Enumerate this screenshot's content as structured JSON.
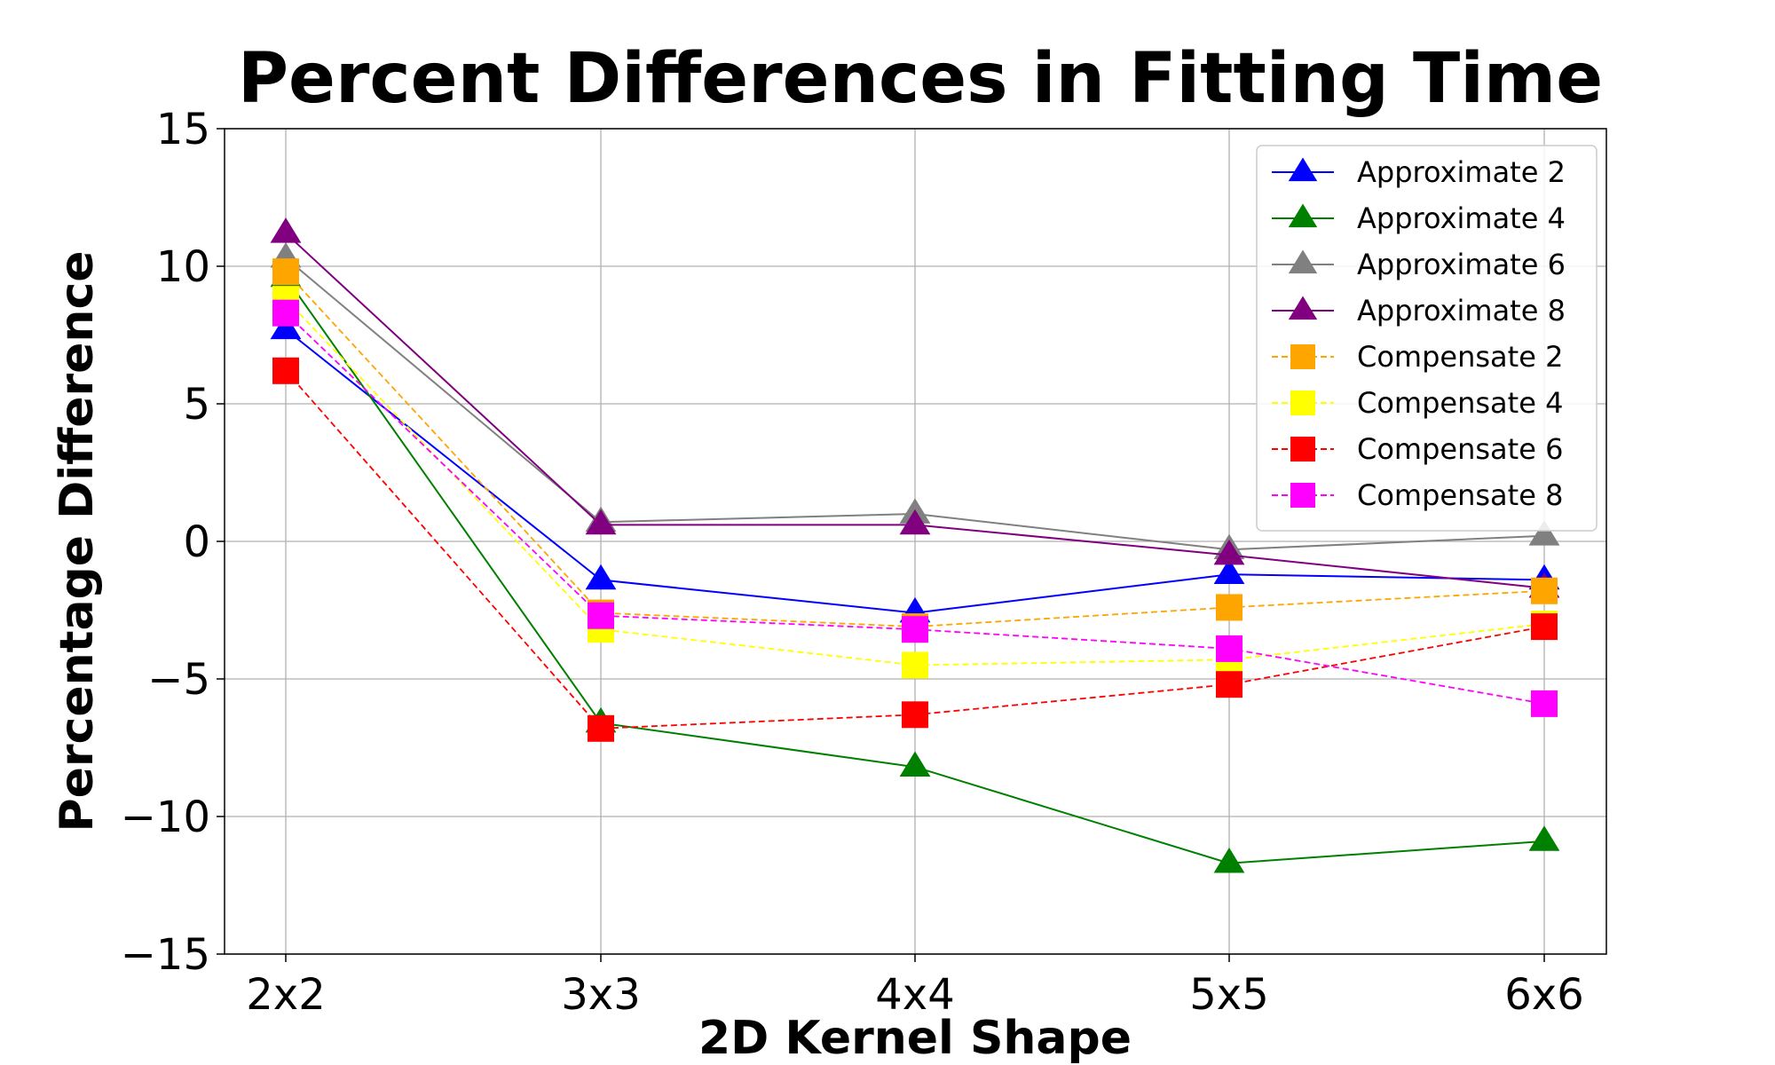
{
  "chart_data": {
    "type": "line",
    "title": "Percent Differences in Fitting Time",
    "xlabel": "2D Kernel Shape",
    "ylabel": "Percentage Difference",
    "categories": [
      "2x2",
      "3x3",
      "4x4",
      "5x5",
      "6x6"
    ],
    "ylim": [
      -15,
      15
    ],
    "yticks": [
      15,
      10,
      5,
      0,
      -5,
      -10,
      -15
    ],
    "ytick_labels": [
      "15",
      "10",
      "5",
      "0",
      "−5",
      "−10",
      "−15"
    ],
    "grid": true,
    "legend_position": "top-right",
    "series": [
      {
        "name": "Approximate 2",
        "color": "#0000ff",
        "marker": "triangle",
        "linestyle": "solid",
        "values": [
          7.7,
          -1.4,
          -2.6,
          -1.2,
          -1.4
        ]
      },
      {
        "name": "Approximate 4",
        "color": "#008000",
        "marker": "triangle",
        "linestyle": "solid",
        "values": [
          9.6,
          -6.6,
          -8.2,
          -11.7,
          -10.9
        ]
      },
      {
        "name": "Approximate 6",
        "color": "#808080",
        "marker": "triangle",
        "linestyle": "solid",
        "values": [
          10.3,
          0.7,
          1.0,
          -0.3,
          0.2
        ]
      },
      {
        "name": "Approximate 8",
        "color": "#800080",
        "marker": "triangle",
        "linestyle": "solid",
        "values": [
          11.2,
          0.6,
          0.6,
          -0.5,
          -1.7
        ]
      },
      {
        "name": "Compensate 2",
        "color": "#ffa500",
        "marker": "square",
        "linestyle": "dashed",
        "values": [
          9.8,
          -2.6,
          -3.1,
          -2.4,
          -1.8
        ]
      },
      {
        "name": "Compensate 4",
        "color": "#ffff00",
        "marker": "square",
        "linestyle": "dashed",
        "values": [
          8.8,
          -3.2,
          -4.5,
          -4.3,
          -3.0
        ]
      },
      {
        "name": "Compensate 6",
        "color": "#ff0000",
        "marker": "square",
        "linestyle": "dashed",
        "values": [
          6.2,
          -6.8,
          -6.3,
          -5.2,
          -3.1
        ]
      },
      {
        "name": "Compensate 8",
        "color": "#ff00ff",
        "marker": "square",
        "linestyle": "dashed",
        "values": [
          8.3,
          -2.7,
          -3.2,
          -3.9,
          -5.9
        ]
      }
    ]
  }
}
